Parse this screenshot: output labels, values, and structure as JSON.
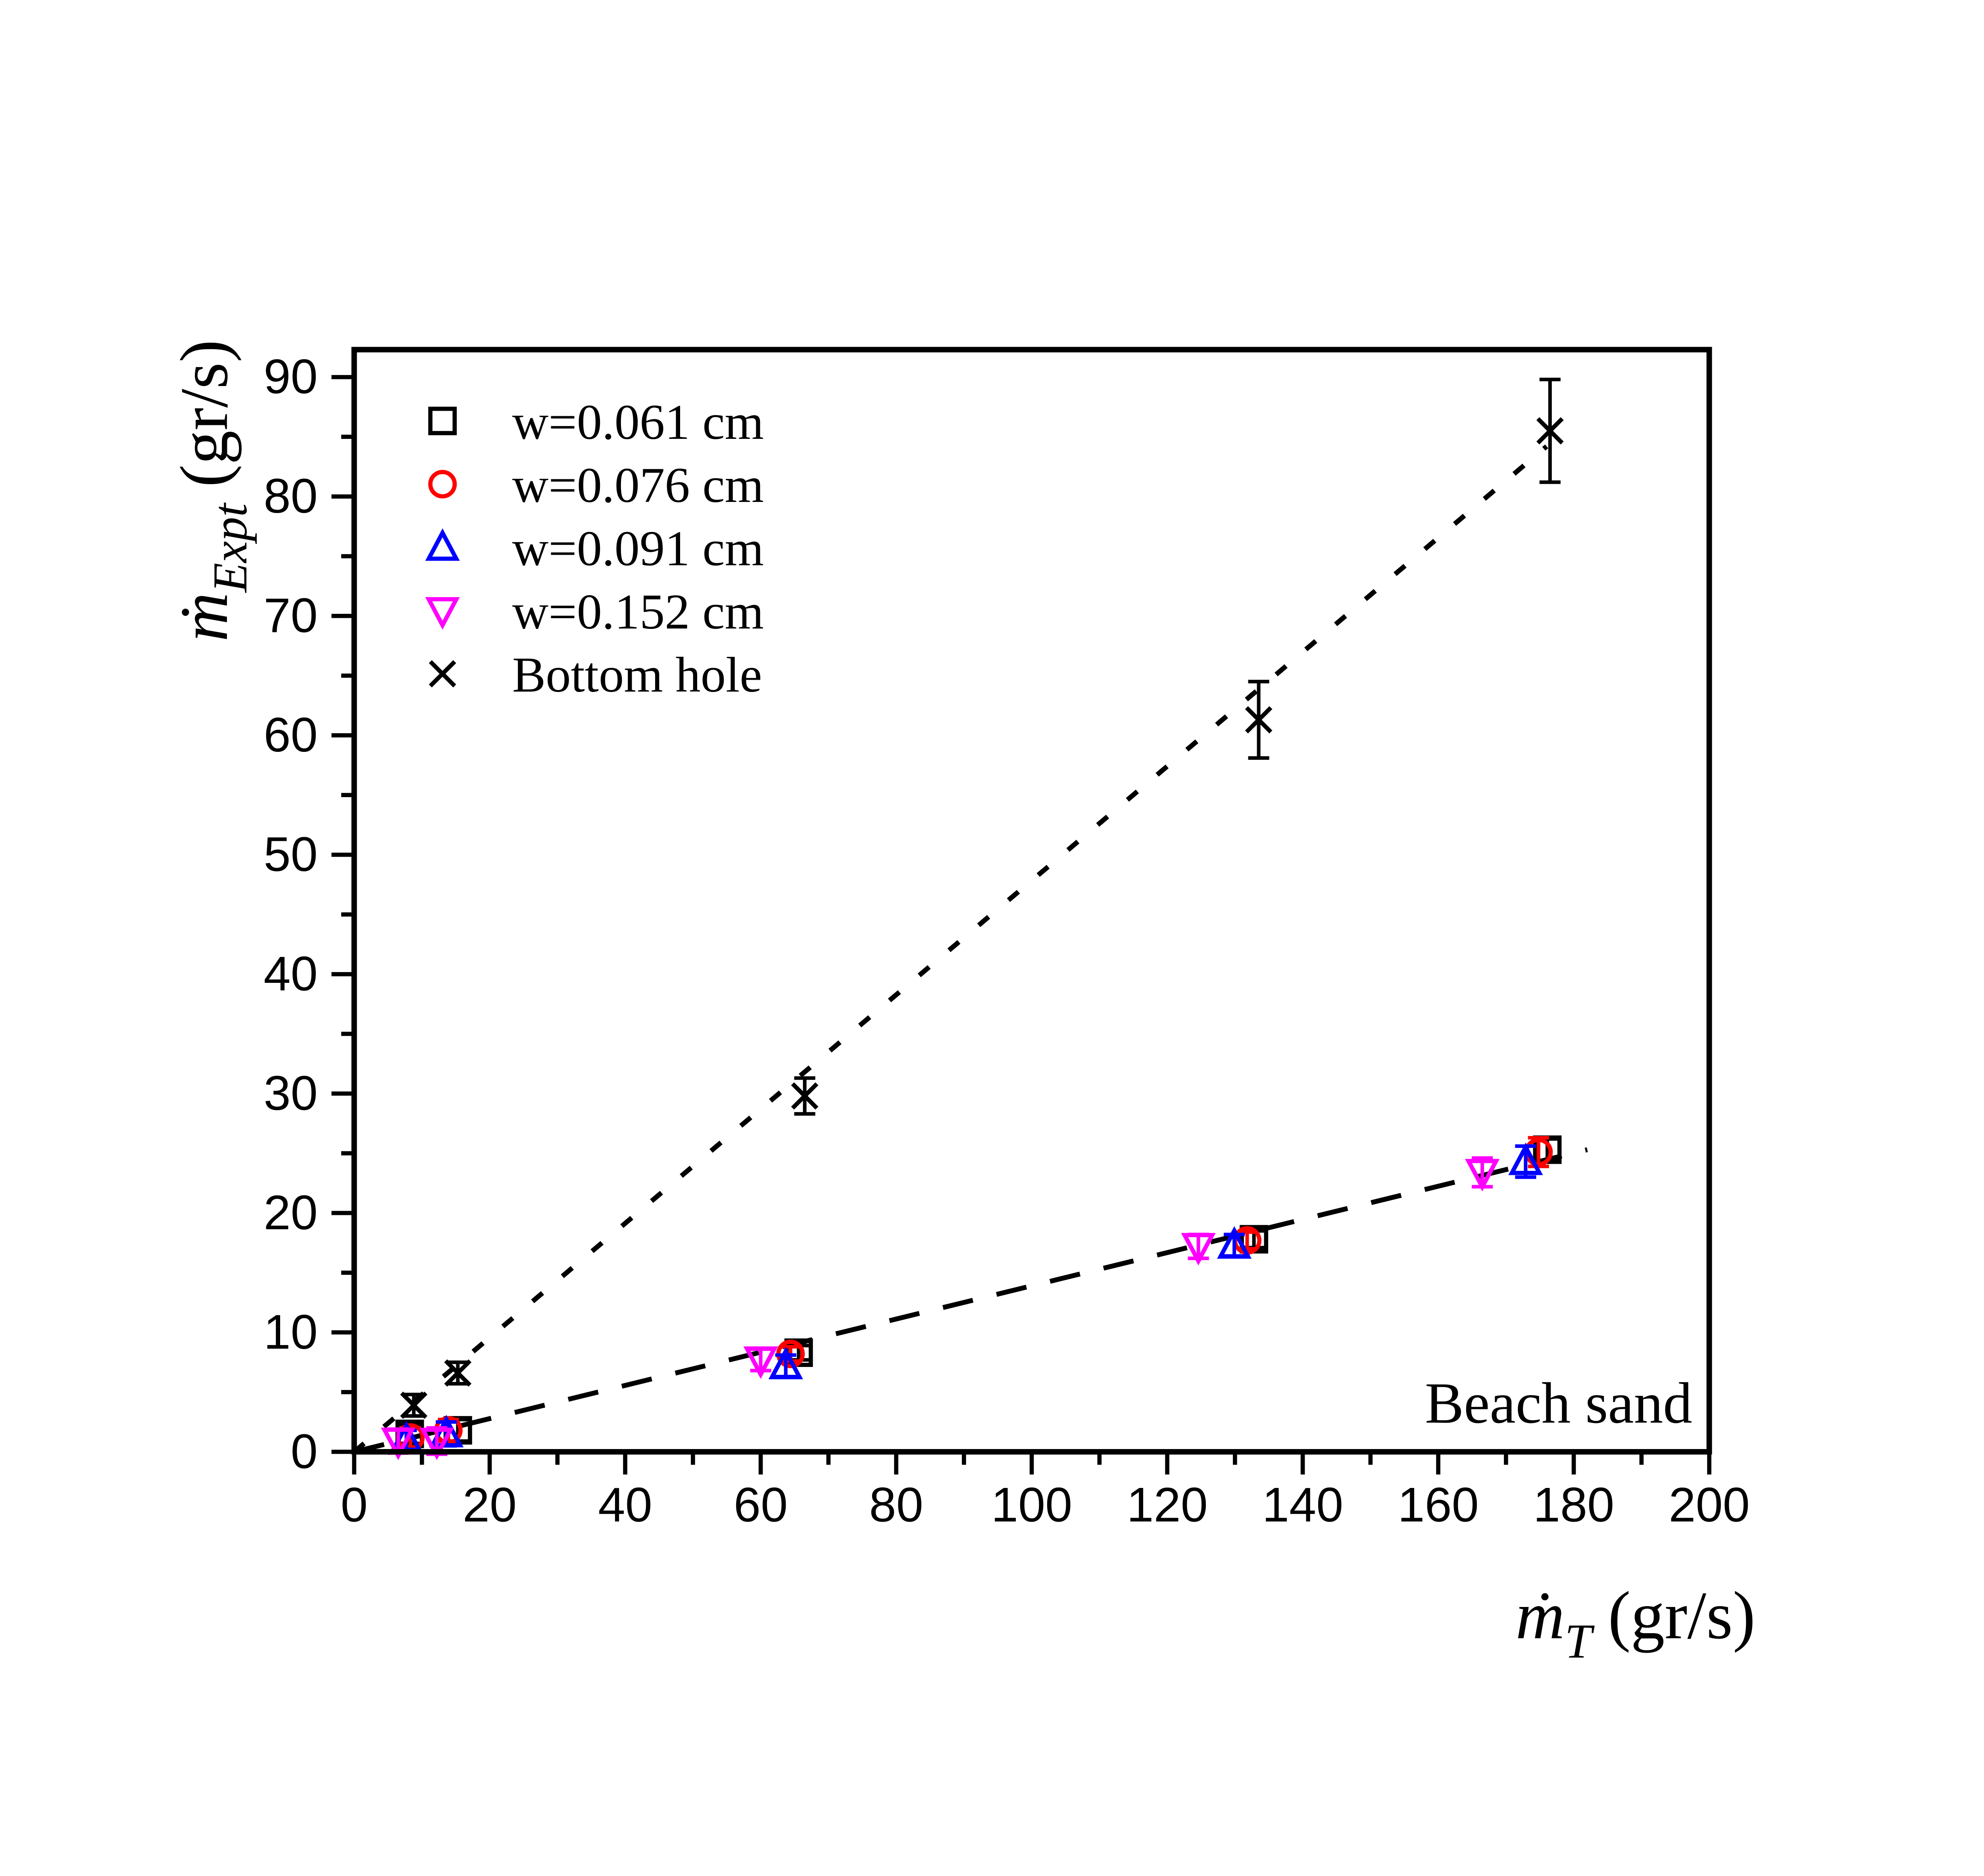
{
  "chart_data": {
    "type": "scatter",
    "title": "",
    "annotation": "Beach sand",
    "background": "#ffffff",
    "grid": false,
    "x_axis": {
      "symbol": "ṁ",
      "subscript": "T",
      "unit": "(gr/s)",
      "min": 0,
      "max": 200,
      "major_step": 20,
      "minor_step": 10,
      "tick_labels": [
        "0",
        "20",
        "40",
        "60",
        "80",
        "100",
        "120",
        "140",
        "160",
        "180",
        "200"
      ]
    },
    "y_axis": {
      "symbol": "ṁ",
      "subscript": "Expt",
      "unit": "(gr/s)",
      "min": 0,
      "max": 92.3,
      "major_step": 10,
      "minor_step": 5,
      "tick_labels": [
        "0",
        "10",
        "20",
        "30",
        "40",
        "50",
        "60",
        "70",
        "80",
        "90"
      ]
    },
    "legend": {
      "position": "top-left"
    },
    "series": [
      {
        "name": "w=0.061 cm",
        "marker": "square",
        "color": "#000000",
        "points": [
          [
            8.2,
            1.5,
            0.8
          ],
          [
            15.3,
            1.8,
            0.9
          ],
          [
            65.6,
            8.3,
            0.6
          ],
          [
            132.8,
            17.8,
            0.7
          ],
          [
            176.1,
            25.3,
            0.9
          ]
        ]
      },
      {
        "name": "w=0.076 cm",
        "marker": "circle",
        "color": "#ff0000",
        "points": [
          [
            8.3,
            1.2,
            0.8
          ],
          [
            13.9,
            1.8,
            0.9
          ],
          [
            64.4,
            8.2,
            0.6
          ],
          [
            131.8,
            17.7,
            0.7
          ],
          [
            174.8,
            25.1,
            1.2
          ]
        ]
      },
      {
        "name": "w=0.091 cm",
        "marker": "triangle-up",
        "color": "#0000ff",
        "points": [
          [
            7.7,
            1.0,
            0.8
          ],
          [
            13.6,
            1.5,
            1.0
          ],
          [
            63.7,
            7.2,
            0.9
          ],
          [
            129.9,
            17.3,
            0.9
          ],
          [
            172.9,
            24.3,
            1.3
          ]
        ]
      },
      {
        "name": "w=0.152 cm",
        "marker": "triangle-down",
        "color": "#ff00ff",
        "points": [
          [
            6.5,
            0.9,
            1.0
          ],
          [
            12.2,
            0.9,
            1.1
          ],
          [
            60.0,
            7.7,
            0.9
          ],
          [
            124.6,
            17.2,
            1.0
          ],
          [
            166.5,
            23.4,
            1.2
          ]
        ]
      },
      {
        "name": "Bottom hole",
        "marker": "x",
        "color": "#000000",
        "points": [
          [
            8.8,
            3.9,
            0.9
          ],
          [
            15.3,
            6.6,
            0.9
          ],
          [
            66.5,
            29.8,
            1.5
          ],
          [
            133.5,
            61.3,
            3.2
          ],
          [
            176.5,
            85.5,
            4.3
          ]
        ]
      }
    ],
    "fit_lines": [
      {
        "style": "dashed",
        "color": "#000000",
        "from": [
          0,
          0
        ],
        "to": [
          182,
          25.3
        ]
      },
      {
        "style": "dotted",
        "color": "#000000",
        "from": [
          0,
          0
        ],
        "to": [
          176,
          84.2
        ]
      }
    ]
  }
}
